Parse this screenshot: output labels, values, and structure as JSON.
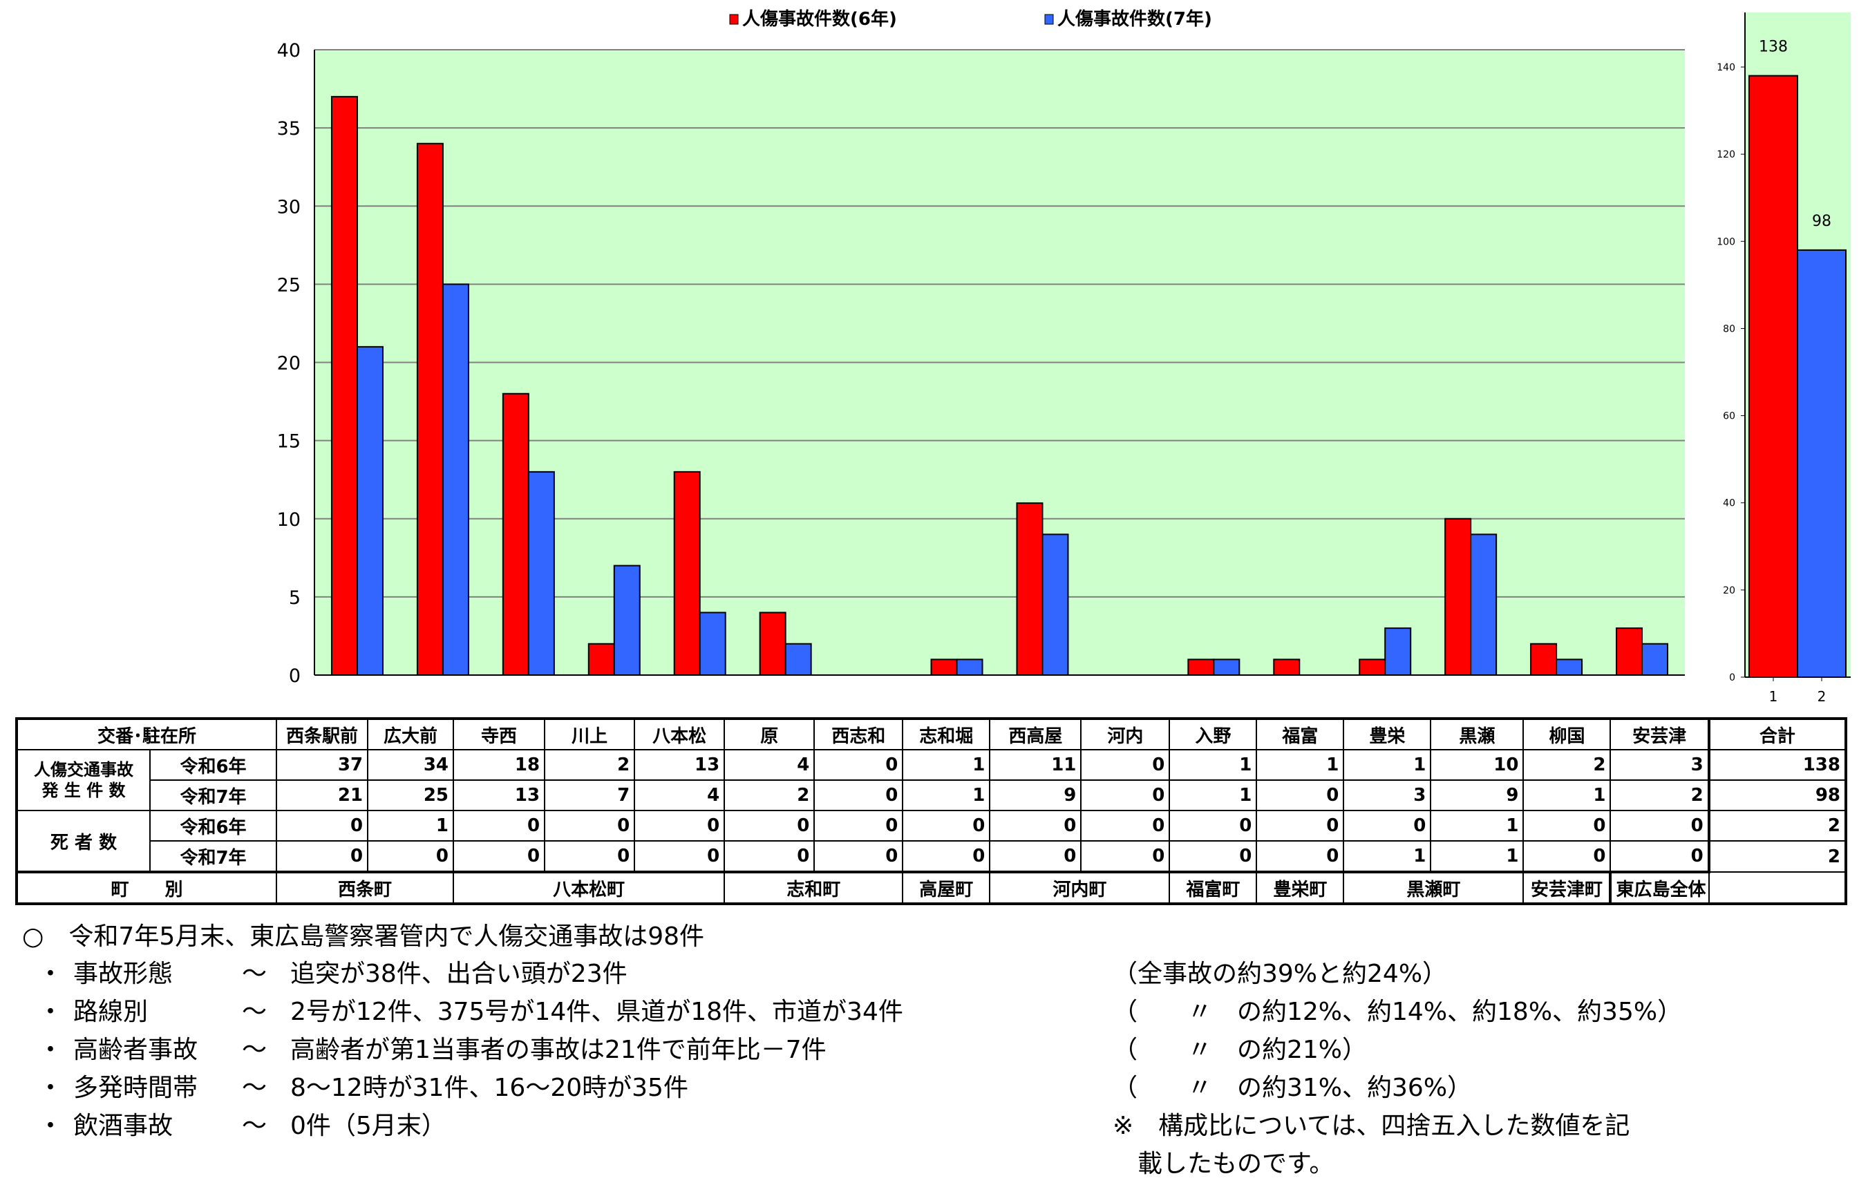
{
  "chart_data": [
    {
      "type": "bar",
      "categories": [
        "西条駅前",
        "広大前",
        "寺西",
        "川上",
        "八本松",
        "原",
        "西志和",
        "志和堀",
        "西高屋",
        "河内",
        "入野",
        "福富",
        "豊栄",
        "黒瀬",
        "柳国",
        "安芸津"
      ],
      "series": [
        {
          "name": "人傷事故件数(6年)",
          "color": "#ff0000",
          "values": [
            37,
            34,
            18,
            2,
            13,
            4,
            0,
            1,
            11,
            0,
            1,
            1,
            1,
            10,
            2,
            3
          ]
        },
        {
          "name": "人傷事故件数(7年)",
          "color": "#3366ff",
          "values": [
            21,
            25,
            13,
            7,
            4,
            2,
            0,
            1,
            9,
            0,
            1,
            0,
            3,
            9,
            1,
            2
          ]
        }
      ],
      "ylim": [
        0,
        40
      ],
      "yticks": [
        "0",
        "5",
        "10",
        "15",
        "20",
        "25",
        "30",
        "35",
        "40"
      ],
      "grid": true,
      "background": "#ccffcc",
      "legend_position": "top"
    },
    {
      "type": "bar",
      "categories": [
        "1",
        "2"
      ],
      "values": [
        138,
        98
      ],
      "data_labels": [
        "138",
        "98"
      ],
      "colors": [
        "#ff0000",
        "#3366ff"
      ],
      "ylim": [
        0,
        140
      ],
      "yticks": [
        "0",
        "20",
        "40",
        "60",
        "80",
        "100",
        "120",
        "140"
      ],
      "grid": false,
      "background": "#ccffcc"
    }
  ],
  "table": {
    "header_label": "交番･駐在所",
    "stations": [
      "西条駅前",
      "広大前",
      "寺西",
      "川上",
      "八本松",
      "原",
      "西志和",
      "志和堀",
      "西高屋",
      "河内",
      "入野",
      "福富",
      "豊栄",
      "黒瀬",
      "柳国",
      "安芸津"
    ],
    "total_label": "合計",
    "group1_label_line1": "人傷交通事故",
    "group1_label_line2": "発 生 件 数",
    "group2_label": "死 者 数",
    "year6": "令和6年",
    "year7": "令和7年",
    "rows": {
      "acc6": [
        "37",
        "34",
        "18",
        "2",
        "13",
        "4",
        "0",
        "1",
        "11",
        "0",
        "1",
        "1",
        "1",
        "10",
        "2",
        "3"
      ],
      "acc7": [
        "21",
        "25",
        "13",
        "7",
        "4",
        "2",
        "0",
        "1",
        "9",
        "0",
        "1",
        "0",
        "3",
        "9",
        "1",
        "2"
      ],
      "dth6": [
        "0",
        "1",
        "0",
        "0",
        "0",
        "0",
        "0",
        "0",
        "0",
        "0",
        "0",
        "0",
        "0",
        "1",
        "0",
        "0"
      ],
      "dth7": [
        "0",
        "0",
        "0",
        "0",
        "0",
        "0",
        "0",
        "0",
        "0",
        "0",
        "0",
        "0",
        "1",
        "1",
        "0",
        "0"
      ]
    },
    "totals": {
      "acc6": "138",
      "acc7": "98",
      "dth6": "2",
      "dth7": "2"
    },
    "town_label": "町　　別",
    "towns": [
      "西条町",
      "八本松町",
      "志和町",
      "高屋町",
      "河内町",
      "福富町",
      "豊栄町",
      "黒瀬町",
      "安芸津町"
    ],
    "total_town": "東広島全体"
  },
  "notes": {
    "summary": "○　令和7年5月末、東広島警察署管内で人傷交通事故は98件",
    "items": [
      {
        "bullet": "・",
        "label": "事故形態",
        "sep": "～",
        "text": "追突が38件、出合い頭が23件"
      },
      {
        "bullet": "・",
        "label": "路線別",
        "sep": "～",
        "text": "2号が12件、375号が14件、県道が18件、市道が34件"
      },
      {
        "bullet": "・",
        "label": "高齢者事故",
        "sep": "～",
        "text": "高齢者が第1当事者の事故は21件で前年比－7件"
      },
      {
        "bullet": "・",
        "label": "多発時間帯",
        "sep": "～",
        "text": "8～12時が31件、16～20時が35件"
      },
      {
        "bullet": "・",
        "label": "飲酒事故",
        "sep": "～",
        "text": "0件（5月末）"
      }
    ],
    "right": [
      "（全事故の約39%と約24%）",
      "（　　〃　の約12%、約14%、約18%、約35%）",
      "（　　〃　の約21%）",
      "（　　〃　の約31%、約36%）",
      "※　構成比については、四捨五入した数値を記",
      "　載したものです。"
    ]
  }
}
